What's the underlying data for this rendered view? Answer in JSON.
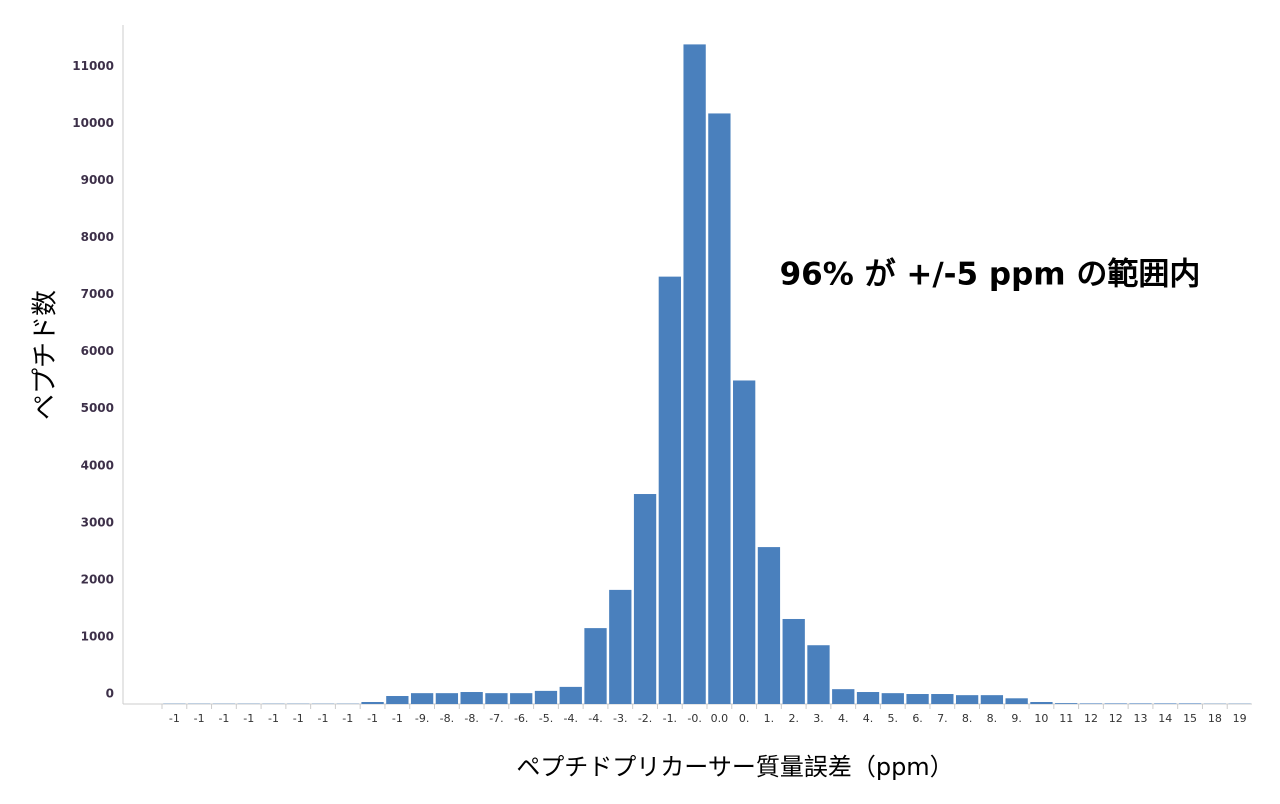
{
  "chart_data": {
    "type": "bar",
    "annotation": "96% が +/-5 ppm の範囲内",
    "x_label": "ペプチドプリカーサー質量誤差（ppm）",
    "y_label": "ペプチド数",
    "categories": [
      "-1",
      "-1",
      "-1",
      "-1",
      "-1",
      "-1",
      "-1",
      "-1",
      "-1",
      "-1",
      "-9.",
      "-8.",
      "-8.",
      "-7.",
      "-6.",
      "-5.",
      "-4.",
      "-4.",
      "-3.",
      "-2.",
      "-1.",
      "-0.",
      "0.0",
      "0.",
      "1.",
      "2.",
      "3.",
      "4.",
      "4.",
      "5.",
      "6.",
      "7.",
      "8.",
      "8.",
      "9.",
      "10",
      "11",
      "12",
      "12",
      "13",
      "14",
      "15",
      "18",
      "19"
    ],
    "values": [
      5,
      5,
      5,
      5,
      5,
      5,
      5,
      5,
      35,
      140,
      190,
      190,
      210,
      190,
      190,
      230,
      300,
      1330,
      2000,
      3680,
      7490,
      11560,
      10350,
      5670,
      2750,
      1490,
      1030,
      260,
      210,
      190,
      175,
      175,
      155,
      155,
      100,
      35,
      15,
      10,
      10,
      10,
      10,
      10,
      5,
      5
    ],
    "color": "#4a80bd",
    "ylim": [
      0,
      11900
    ],
    "yticks": [
      0,
      1000,
      2000,
      3000,
      4000,
      5000,
      6000,
      7000,
      8000,
      9000,
      10000,
      11000
    ],
    "grid": false
  }
}
